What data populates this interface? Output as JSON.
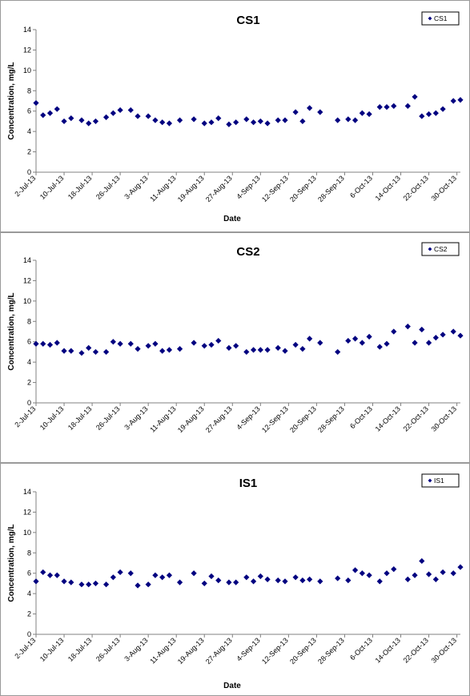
{
  "chart_data": [
    {
      "type": "scatter",
      "title": "CS1",
      "xlabel": "Date",
      "ylabel": "Concentration, mg/L",
      "ylim": [
        0,
        14
      ],
      "yticks": [
        "0",
        "2",
        "4",
        "6",
        "8",
        "10",
        "12",
        "14"
      ],
      "xlim": [
        "2013-07-02",
        "2013-10-31"
      ],
      "xticks": [
        "2-Jul-13",
        "10-Jul-13",
        "18-Jul-13",
        "26-Jul-13",
        "3-Aug-13",
        "11-Aug-13",
        "19-Aug-13",
        "27-Aug-13",
        "4-Sep-13",
        "12-Sep-13",
        "20-Sep-13",
        "28-Sep-13",
        "6-Oct-13",
        "14-Oct-13",
        "22-Oct-13",
        "30-Oct-13"
      ],
      "grid": false,
      "legend_position": "top-right",
      "marker_color": "#000080",
      "series": [
        {
          "name": "CS1",
          "points": [
            [
              "2013-07-02",
              6.8
            ],
            [
              "2013-07-04",
              5.6
            ],
            [
              "2013-07-06",
              5.8
            ],
            [
              "2013-07-08",
              6.2
            ],
            [
              "2013-07-10",
              5.0
            ],
            [
              "2013-07-12",
              5.3
            ],
            [
              "2013-07-15",
              5.1
            ],
            [
              "2013-07-17",
              4.8
            ],
            [
              "2013-07-19",
              5.0
            ],
            [
              "2013-07-22",
              5.4
            ],
            [
              "2013-07-24",
              5.8
            ],
            [
              "2013-07-26",
              6.1
            ],
            [
              "2013-07-29",
              6.1
            ],
            [
              "2013-07-31",
              5.5
            ],
            [
              "2013-08-03",
              5.5
            ],
            [
              "2013-08-05",
              5.1
            ],
            [
              "2013-08-07",
              4.9
            ],
            [
              "2013-08-09",
              4.8
            ],
            [
              "2013-08-12",
              5.1
            ],
            [
              "2013-08-16",
              5.2
            ],
            [
              "2013-08-19",
              4.8
            ],
            [
              "2013-08-21",
              4.9
            ],
            [
              "2013-08-23",
              5.3
            ],
            [
              "2013-08-26",
              4.7
            ],
            [
              "2013-08-28",
              4.9
            ],
            [
              "2013-08-31",
              5.2
            ],
            [
              "2013-09-02",
              4.9
            ],
            [
              "2013-09-04",
              5.0
            ],
            [
              "2013-09-06",
              4.8
            ],
            [
              "2013-09-09",
              5.1
            ],
            [
              "2013-09-11",
              5.1
            ],
            [
              "2013-09-14",
              5.9
            ],
            [
              "2013-09-16",
              5.0
            ],
            [
              "2013-09-18",
              6.3
            ],
            [
              "2013-09-21",
              5.9
            ],
            [
              "2013-09-26",
              5.1
            ],
            [
              "2013-09-29",
              5.2
            ],
            [
              "2013-10-01",
              5.1
            ],
            [
              "2013-10-03",
              5.8
            ],
            [
              "2013-10-05",
              5.7
            ],
            [
              "2013-10-08",
              6.4
            ],
            [
              "2013-10-10",
              6.4
            ],
            [
              "2013-10-12",
              6.5
            ],
            [
              "2013-10-16",
              6.5
            ],
            [
              "2013-10-18",
              7.4
            ],
            [
              "2013-10-20",
              5.5
            ],
            [
              "2013-10-22",
              5.7
            ],
            [
              "2013-10-24",
              5.8
            ],
            [
              "2013-10-26",
              6.2
            ],
            [
              "2013-10-29",
              7.0
            ],
            [
              "2013-10-31",
              7.1
            ]
          ]
        }
      ]
    },
    {
      "type": "scatter",
      "title": "CS2",
      "xlabel": "",
      "ylabel": "Concentration, mg/L",
      "ylim": [
        0,
        14
      ],
      "yticks": [
        "0",
        "2",
        "4",
        "6",
        "8",
        "10",
        "12",
        "14"
      ],
      "xlim": [
        "2013-07-02",
        "2013-10-31"
      ],
      "xticks": [
        "2-Jul-13",
        "10-Jul-13",
        "18-Jul-13",
        "26-Jul-13",
        "3-Aug-13",
        "11-Aug-13",
        "19-Aug-13",
        "27-Aug-13",
        "4-Sep-13",
        "12-Sep-13",
        "20-Sep-13",
        "28-Sep-13",
        "6-Oct-13",
        "14-Oct-13",
        "22-Oct-13",
        "30-Oct-13"
      ],
      "grid": false,
      "legend_position": "top-right",
      "marker_color": "#000080",
      "series": [
        {
          "name": "CS2",
          "points": [
            [
              "2013-07-02",
              5.8
            ],
            [
              "2013-07-04",
              5.8
            ],
            [
              "2013-07-06",
              5.7
            ],
            [
              "2013-07-08",
              5.9
            ],
            [
              "2013-07-10",
              5.1
            ],
            [
              "2013-07-12",
              5.1
            ],
            [
              "2013-07-15",
              4.9
            ],
            [
              "2013-07-17",
              5.4
            ],
            [
              "2013-07-19",
              5.0
            ],
            [
              "2013-07-22",
              5.0
            ],
            [
              "2013-07-24",
              6.0
            ],
            [
              "2013-07-26",
              5.8
            ],
            [
              "2013-07-29",
              5.8
            ],
            [
              "2013-07-31",
              5.3
            ],
            [
              "2013-08-03",
              5.6
            ],
            [
              "2013-08-05",
              5.8
            ],
            [
              "2013-08-07",
              5.1
            ],
            [
              "2013-08-09",
              5.2
            ],
            [
              "2013-08-12",
              5.3
            ],
            [
              "2013-08-16",
              5.9
            ],
            [
              "2013-08-19",
              5.6
            ],
            [
              "2013-08-21",
              5.7
            ],
            [
              "2013-08-23",
              6.1
            ],
            [
              "2013-08-26",
              5.4
            ],
            [
              "2013-08-28",
              5.6
            ],
            [
              "2013-08-31",
              5.0
            ],
            [
              "2013-09-02",
              5.2
            ],
            [
              "2013-09-04",
              5.2
            ],
            [
              "2013-09-06",
              5.2
            ],
            [
              "2013-09-09",
              5.4
            ],
            [
              "2013-09-11",
              5.1
            ],
            [
              "2013-09-14",
              5.7
            ],
            [
              "2013-09-16",
              5.3
            ],
            [
              "2013-09-18",
              6.3
            ],
            [
              "2013-09-21",
              5.9
            ],
            [
              "2013-09-26",
              5.0
            ],
            [
              "2013-09-29",
              6.1
            ],
            [
              "2013-10-01",
              6.3
            ],
            [
              "2013-10-03",
              5.9
            ],
            [
              "2013-10-05",
              6.5
            ],
            [
              "2013-10-08",
              5.5
            ],
            [
              "2013-10-10",
              5.8
            ],
            [
              "2013-10-12",
              7.0
            ],
            [
              "2013-10-16",
              7.5
            ],
            [
              "2013-10-18",
              5.9
            ],
            [
              "2013-10-20",
              7.2
            ],
            [
              "2013-10-22",
              5.9
            ],
            [
              "2013-10-24",
              6.4
            ],
            [
              "2013-10-26",
              6.7
            ],
            [
              "2013-10-29",
              7.0
            ],
            [
              "2013-10-31",
              6.6
            ]
          ]
        }
      ]
    },
    {
      "type": "scatter",
      "title": "IS1",
      "xlabel": "Date",
      "ylabel": "Concentration, mg/L",
      "ylim": [
        0,
        14
      ],
      "yticks": [
        "0",
        "2",
        "4",
        "6",
        "8",
        "10",
        "12",
        "14"
      ],
      "xlim": [
        "2013-07-02",
        "2013-10-31"
      ],
      "xticks": [
        "2-Jul-13",
        "10-Jul-13",
        "18-Jul-13",
        "26-Jul-13",
        "3-Aug-13",
        "11-Aug-13",
        "19-Aug-13",
        "27-Aug-13",
        "4-Sep-13",
        "12-Sep-13",
        "20-Sep-13",
        "28-Sep-13",
        "6-Oct-13",
        "14-Oct-13",
        "22-Oct-13",
        "30-Oct-13"
      ],
      "grid": false,
      "legend_position": "top-right",
      "marker_color": "#000080",
      "series": [
        {
          "name": "IS1",
          "points": [
            [
              "2013-07-02",
              5.2
            ],
            [
              "2013-07-04",
              6.1
            ],
            [
              "2013-07-06",
              5.8
            ],
            [
              "2013-07-08",
              5.8
            ],
            [
              "2013-07-10",
              5.2
            ],
            [
              "2013-07-12",
              5.1
            ],
            [
              "2013-07-15",
              4.9
            ],
            [
              "2013-07-17",
              4.9
            ],
            [
              "2013-07-19",
              5.0
            ],
            [
              "2013-07-22",
              4.9
            ],
            [
              "2013-07-24",
              5.6
            ],
            [
              "2013-07-26",
              6.1
            ],
            [
              "2013-07-29",
              6.0
            ],
            [
              "2013-07-31",
              4.8
            ],
            [
              "2013-08-03",
              4.9
            ],
            [
              "2013-08-05",
              5.8
            ],
            [
              "2013-08-07",
              5.6
            ],
            [
              "2013-08-09",
              5.8
            ],
            [
              "2013-08-12",
              5.1
            ],
            [
              "2013-08-16",
              6.0
            ],
            [
              "2013-08-19",
              5.0
            ],
            [
              "2013-08-21",
              5.7
            ],
            [
              "2013-08-23",
              5.3
            ],
            [
              "2013-08-26",
              5.1
            ],
            [
              "2013-08-28",
              5.1
            ],
            [
              "2013-08-31",
              5.6
            ],
            [
              "2013-09-02",
              5.2
            ],
            [
              "2013-09-04",
              5.7
            ],
            [
              "2013-09-06",
              5.4
            ],
            [
              "2013-09-09",
              5.3
            ],
            [
              "2013-09-11",
              5.2
            ],
            [
              "2013-09-14",
              5.6
            ],
            [
              "2013-09-16",
              5.3
            ],
            [
              "2013-09-18",
              5.4
            ],
            [
              "2013-09-21",
              5.2
            ],
            [
              "2013-09-26",
              5.5
            ],
            [
              "2013-09-29",
              5.3
            ],
            [
              "2013-10-01",
              6.3
            ],
            [
              "2013-10-03",
              6.0
            ],
            [
              "2013-10-05",
              5.8
            ],
            [
              "2013-10-08",
              5.2
            ],
            [
              "2013-10-10",
              6.0
            ],
            [
              "2013-10-12",
              6.4
            ],
            [
              "2013-10-16",
              5.4
            ],
            [
              "2013-10-18",
              5.8
            ],
            [
              "2013-10-20",
              7.2
            ],
            [
              "2013-10-22",
              5.9
            ],
            [
              "2013-10-24",
              5.4
            ],
            [
              "2013-10-26",
              6.1
            ],
            [
              "2013-10-29",
              6.0
            ],
            [
              "2013-10-31",
              6.6
            ]
          ]
        }
      ]
    }
  ]
}
